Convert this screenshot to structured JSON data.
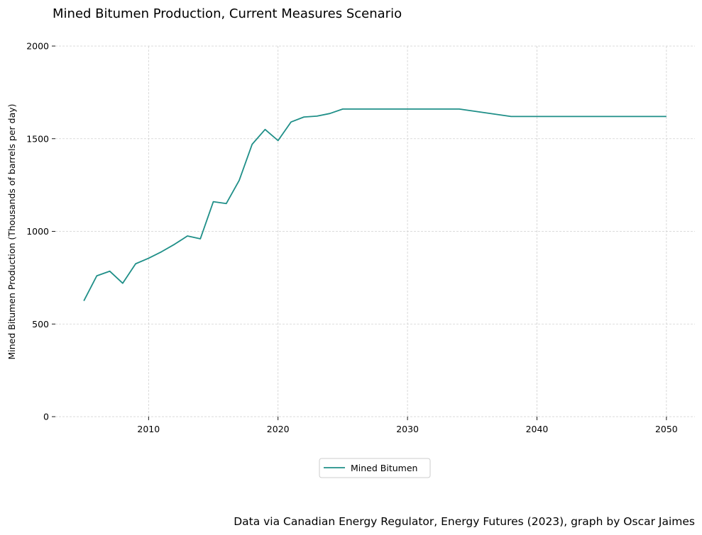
{
  "chart_data": {
    "type": "line",
    "title": "Mined Bitumen Production, Current Measures Scenario",
    "xlabel": "",
    "ylabel": "Mined Bitumen Production (Thousands of barrels per day)",
    "xlim": [
      2002.8,
      2052.2
    ],
    "ylim": [
      0,
      2000
    ],
    "x_ticks": [
      2010,
      2020,
      2030,
      2040,
      2050
    ],
    "y_ticks": [
      0,
      500,
      1000,
      1500,
      2000
    ],
    "grid": true,
    "legend_position": "bottom-center",
    "source_note": "Data via Canadian Energy Regulator, Energy Futures (2023), graph by Oscar Jaimes",
    "series": [
      {
        "name": "Mined Bitumen",
        "color": "#1f8f88",
        "x": [
          2005,
          2006,
          2007,
          2008,
          2009,
          2010,
          2011,
          2012,
          2013,
          2014,
          2015,
          2016,
          2017,
          2018,
          2019,
          2020,
          2021,
          2022,
          2023,
          2024,
          2025,
          2026,
          2027,
          2028,
          2029,
          2030,
          2031,
          2032,
          2033,
          2034,
          2035,
          2036,
          2037,
          2038,
          2039,
          2040,
          2041,
          2042,
          2043,
          2044,
          2045,
          2046,
          2047,
          2048,
          2049,
          2050
        ],
        "values": [
          625,
          760,
          785,
          720,
          825,
          855,
          890,
          930,
          975,
          960,
          1160,
          1150,
          1275,
          1470,
          1550,
          1490,
          1590,
          1617,
          1622,
          1636,
          1660,
          1660,
          1660,
          1660,
          1660,
          1660,
          1660,
          1660,
          1660,
          1660,
          1650,
          1640,
          1630,
          1620,
          1620,
          1620,
          1620,
          1620,
          1620,
          1620,
          1620,
          1620,
          1620,
          1620,
          1620,
          1620
        ]
      }
    ]
  }
}
